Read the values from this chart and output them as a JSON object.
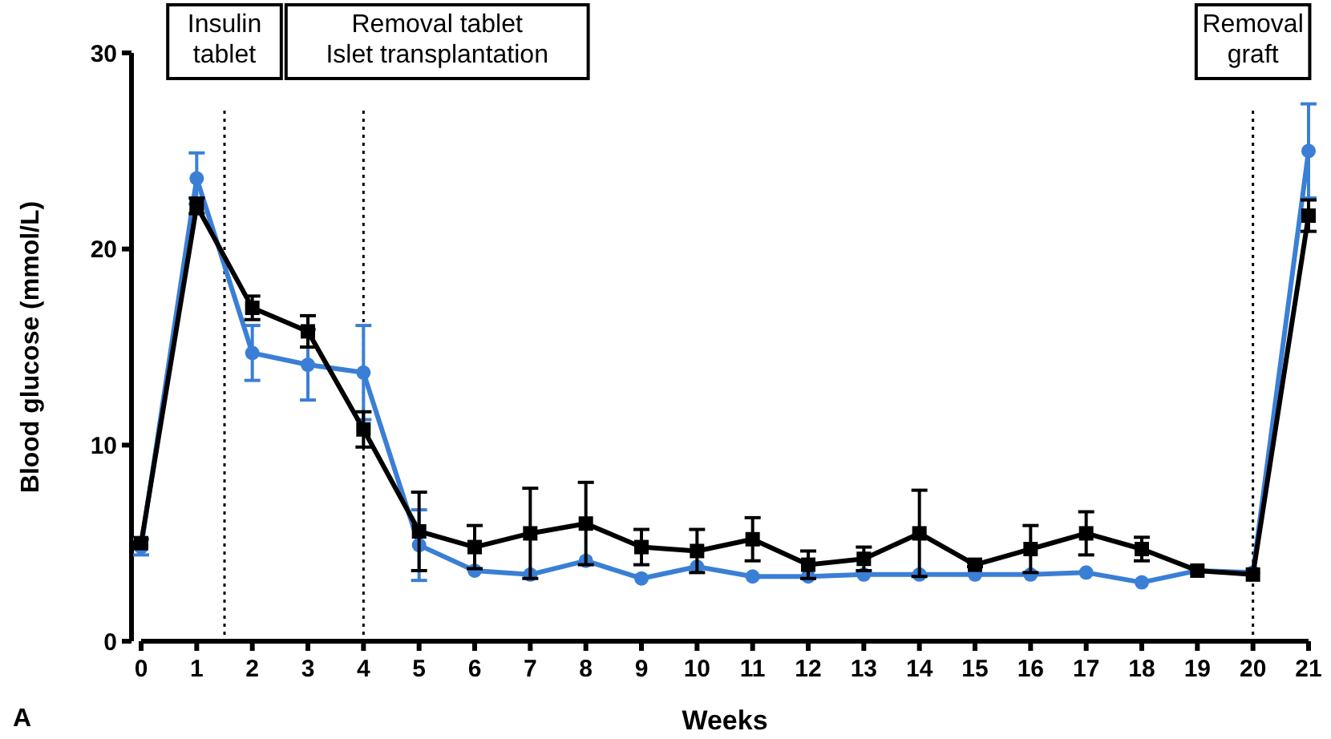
{
  "chart_data": {
    "type": "line",
    "xlabel": "Weeks",
    "ylabel": "Blood glucose (mmol/L)",
    "x": [
      0,
      1,
      2,
      3,
      4,
      5,
      6,
      7,
      8,
      9,
      10,
      11,
      12,
      13,
      14,
      15,
      16,
      17,
      18,
      19,
      20,
      21
    ],
    "xlim": [
      0,
      21
    ],
    "xticks": [
      0,
      1,
      2,
      3,
      4,
      5,
      6,
      7,
      8,
      9,
      10,
      11,
      12,
      13,
      14,
      15,
      16,
      17,
      18,
      19,
      20,
      21
    ],
    "ylim": [
      0,
      30
    ],
    "yticks": [
      0,
      10,
      20,
      30
    ],
    "grid": false,
    "line_style": "solid",
    "series": [
      {
        "color": "#3a7fd5",
        "marker": "circle",
        "values": [
          4.8,
          23.6,
          14.7,
          14.1,
          13.7,
          4.9,
          3.6,
          3.4,
          4.1,
          3.2,
          3.8,
          3.3,
          3.3,
          3.4,
          3.4,
          3.4,
          3.4,
          3.5,
          3.0,
          3.6,
          3.5,
          25.0
        ],
        "errors": [
          0.4,
          1.3,
          1.4,
          1.8,
          2.4,
          1.8,
          null,
          null,
          null,
          null,
          null,
          null,
          null,
          null,
          null,
          null,
          null,
          null,
          null,
          null,
          null,
          2.4
        ]
      },
      {
        "color": "#000000",
        "marker": "square",
        "values": [
          5.0,
          22.2,
          17.0,
          15.8,
          10.8,
          5.6,
          4.8,
          5.5,
          6.0,
          4.8,
          4.6,
          5.2,
          3.9,
          4.2,
          5.5,
          3.9,
          4.7,
          5.5,
          4.7,
          3.6,
          3.4,
          21.7
        ],
        "errors": [
          null,
          0.4,
          0.6,
          0.8,
          0.9,
          2.0,
          1.1,
          2.3,
          2.1,
          0.9,
          1.1,
          1.1,
          0.7,
          0.6,
          2.2,
          0.1,
          1.2,
          1.1,
          0.6,
          null,
          null,
          0.8
        ]
      }
    ],
    "ref_lines": [
      {
        "axis": "x",
        "value": 1.5,
        "label": "Insulin\ntablet",
        "line_style": "dotted",
        "color": "#000000"
      },
      {
        "axis": "x",
        "value": 4,
        "label": "Removal tablet\nIslet transplantation",
        "line_style": "dotted",
        "color": "#000000"
      },
      {
        "axis": "x",
        "value": 20,
        "label": "Removal\ngraft",
        "line_style": "dotted",
        "color": "#000000"
      }
    ],
    "annotations": [
      "A"
    ]
  }
}
